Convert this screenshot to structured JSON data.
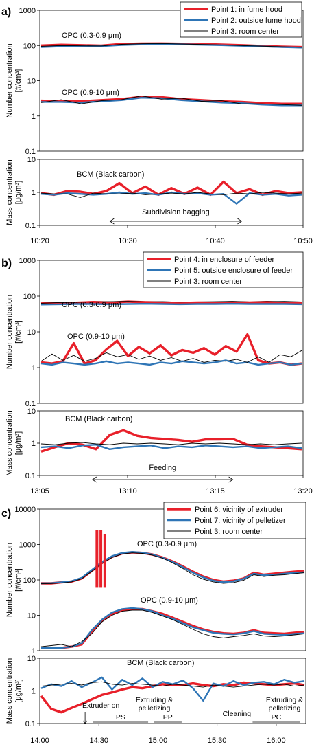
{
  "chart_data": [
    {
      "type": "line",
      "panel_label": "a)",
      "xlabel": "",
      "x_ticks": [
        "10:20",
        "10:30",
        "10:40",
        "10:50"
      ],
      "top": {
        "ylabel": [
          "Number concentration",
          "[#/cm³]"
        ],
        "yscale": "log",
        "ylim": [
          0.1,
          1000
        ],
        "y_ticks": [
          "0.1",
          "1",
          "10",
          "100",
          "1000"
        ],
        "annotations": [
          "OPC (0.3-0.9 μm)",
          "OPC (0.9-10 μm)"
        ]
      },
      "bottom": {
        "ylabel": [
          "Mass concentration",
          "[μg/m³]"
        ],
        "yscale": "log",
        "ylim": [
          0.1,
          10
        ],
        "y_ticks": [
          "0.1",
          "1",
          "10"
        ],
        "annotations": [
          "BCM (Black carbon)",
          "Subdivision bagging"
        ]
      },
      "legend": {
        "position": "top-right",
        "entries": [
          "Point 1: in fume hood",
          "Point 2: outside fume hood",
          "Point 3: room center"
        ]
      },
      "series": [
        {
          "name": "Point 1: in fume hood",
          "color": "#e8202a",
          "opc_03_09": [
            100,
            105,
            102,
            99,
            110,
            113,
            114,
            112,
            110,
            106,
            102,
            97,
            93,
            90
          ],
          "opc_09_10": [
            2.7,
            2.6,
            2.6,
            2.8,
            3.0,
            3.5,
            3.4,
            3.0,
            2.8,
            2.6,
            2.5,
            2.3,
            2.2,
            2.2
          ],
          "bcm": [
            0.95,
            0.85,
            1.1,
            1.05,
            0.9,
            1.1,
            1.9,
            0.95,
            1.5,
            0.85,
            1.35,
            0.9,
            1.4,
            0.85,
            2.1,
            0.95,
            1.25,
            0.85,
            1.1,
            0.95,
            1.0
          ]
        },
        {
          "name": "Point 2: outside fume hood",
          "color": "#2e75b6",
          "opc_03_09": [
            90,
            94,
            95,
            96,
            103,
            107,
            110,
            108,
            105,
            102,
            98,
            94,
            90,
            87
          ],
          "opc_09_10": [
            2.5,
            2.5,
            2.4,
            2.6,
            2.8,
            3.3,
            3.2,
            2.8,
            2.6,
            2.4,
            2.3,
            2.1,
            2.0,
            2.0
          ],
          "bcm": [
            0.9,
            0.85,
            0.95,
            0.9,
            0.85,
            0.9,
            1.0,
            0.9,
            0.95,
            0.85,
            1.0,
            0.9,
            0.95,
            0.85,
            0.9,
            0.45,
            0.95,
            0.85,
            0.9,
            0.8,
            0.85
          ]
        },
        {
          "name": "Point 3: room center",
          "color": "#000000",
          "opc_03_09": [
            95,
            100,
            98,
            97,
            108,
            112,
            114,
            110,
            107,
            104,
            100,
            96,
            92,
            89
          ],
          "opc_09_10": [
            2.4,
            2.9,
            2.2,
            2.7,
            2.9,
            3.7,
            3.0,
            3.2,
            2.6,
            2.7,
            2.2,
            2.2,
            2.1,
            2.0
          ],
          "bcm": [
            0.95,
            0.9,
            0.9,
            0.7,
            0.95,
            0.9,
            0.9,
            0.95,
            0.85,
            0.9,
            0.95,
            0.9,
            1.0,
            0.9,
            0.85,
            0.95,
            0.9,
            1.0,
            0.95,
            0.9,
            0.95
          ]
        }
      ],
      "bracket": {
        "label": "Subdivision bagging",
        "start": "10:28",
        "end": "10:43"
      }
    },
    {
      "type": "line",
      "panel_label": "b)",
      "xlabel": "",
      "x_ticks": [
        "13:05",
        "13:10",
        "13:15",
        "13:20"
      ],
      "top": {
        "ylabel": [
          "Number concentration",
          "[#/cm³]"
        ],
        "yscale": "log",
        "ylim": [
          0.1,
          1000
        ],
        "y_ticks": [
          "0.1",
          "1",
          "10",
          "100",
          "1000"
        ],
        "annotations": [
          "OPC (0.3-0.9 μm)",
          "OPC (0.9-10 μm)"
        ]
      },
      "bottom": {
        "ylabel": [
          "Mass concentration",
          "[μg/m³]"
        ],
        "yscale": "log",
        "ylim": [
          0.1,
          10
        ],
        "y_ticks": [
          "0.1",
          "1",
          "10"
        ],
        "annotations": [
          "BCM (Black carbon)",
          "Feeding"
        ]
      },
      "legend": {
        "position": "top-right",
        "entries": [
          "Point 4: in enclosure of feeder",
          "Point 5: outside enclosure of feeder",
          "Point 3: room center"
        ]
      },
      "series": [
        {
          "name": "Point 4: in enclosure of feeder",
          "color": "#e8202a",
          "opc_03_09": [
            62,
            64,
            65,
            68,
            66,
            70,
            67,
            66,
            64,
            66,
            65,
            67,
            66,
            68,
            66,
            65
          ],
          "opc_09_10": [
            1.4,
            1.3,
            1.5,
            4.8,
            1.3,
            1.6,
            3.2,
            5.6,
            2.1,
            3.8,
            2.5,
            4.2,
            2.2,
            3.1,
            2.6,
            3.5,
            2.3,
            4.0,
            2.8,
            8.5,
            1.6,
            1.3,
            1.4,
            1.2,
            1.3
          ],
          "bcm": [
            0.55,
            0.75,
            1.0,
            0.9,
            0.65,
            1.8,
            2.5,
            1.7,
            1.45,
            1.35,
            1.25,
            1.1,
            1.3,
            1.3,
            1.35,
            0.9,
            0.8,
            0.75,
            0.7,
            0.65
          ]
        },
        {
          "name": "Point 5: outside enclosure of feeder",
          "color": "#2e75b6",
          "opc_03_09": [
            58,
            59,
            60,
            60,
            59,
            60,
            61,
            60,
            59,
            60,
            60,
            61,
            60,
            60,
            60,
            59
          ],
          "opc_09_10": [
            1.3,
            1.2,
            1.4,
            1.3,
            1.2,
            1.3,
            1.5,
            1.3,
            1.4,
            1.3,
            1.2,
            1.4,
            1.3,
            1.5,
            1.4,
            1.3,
            1.4,
            1.6,
            1.3,
            1.4,
            1.2,
            1.3,
            1.4,
            1.2,
            1.3
          ],
          "bcm": [
            0.75,
            0.8,
            0.7,
            0.85,
            0.9,
            0.65,
            0.75,
            0.8,
            0.85,
            0.7,
            0.8,
            0.75,
            0.85,
            0.8,
            0.75,
            0.8,
            0.7,
            0.75,
            0.8,
            0.7
          ]
        },
        {
          "name": "Point 3: room center",
          "color": "#000000",
          "opc_03_09": [
            63,
            66,
            67,
            69,
            70,
            71,
            69,
            70,
            68,
            69,
            70,
            71,
            69,
            70,
            71,
            69
          ],
          "opc_09_10": [
            1.5,
            2.4,
            1.6,
            2.2,
            1.5,
            1.8,
            2.6,
            2.0,
            2.3,
            1.7,
            2.1,
            1.6,
            1.9,
            1.5,
            1.8,
            1.4,
            1.6,
            1.5,
            1.7,
            1.4,
            2.0,
            1.4,
            2.3,
            2.0,
            3.0
          ],
          "bcm": [
            0.95,
            0.9,
            1.0,
            1.05,
            0.95,
            0.9,
            1.0,
            0.95,
            1.0,
            0.95,
            0.9,
            1.0,
            0.95,
            1.0,
            0.95,
            0.9,
            0.95,
            0.9,
            0.95,
            1.0
          ]
        }
      ],
      "bracket": {
        "label": "Feeding",
        "start": "13:08",
        "end": "13:16"
      }
    },
    {
      "type": "line",
      "panel_label": "c)",
      "xlabel": "",
      "x_ticks": [
        "14:00",
        "14:30",
        "15:00",
        "15:30",
        "16:00"
      ],
      "top": {
        "ylabel": [
          "Number concentration",
          "[#/cm³]"
        ],
        "yscale": "log",
        "ylim": [
          1,
          10000
        ],
        "y_ticks": [
          "1",
          "10",
          "100",
          "1000",
          "10000"
        ],
        "annotations": [
          "OPC (0.3-0.9 μm)",
          "OPC (0.9-10 μm)"
        ]
      },
      "bottom": {
        "ylabel": [
          "Mass concentration",
          "[μg/m³]"
        ],
        "yscale": "log",
        "ylim": [
          0.1,
          10
        ],
        "y_ticks": [
          "0.1",
          "1",
          "10"
        ],
        "annotations": [
          "BCM (Black carbon)",
          "Extruder on",
          "Extruding & pelletizing",
          "PS",
          "PP",
          "Cleaning",
          "Extruding & pelletizing",
          "PC"
        ]
      },
      "legend": {
        "position": "top-right",
        "entries": [
          "Point 6: vicinity of extruder",
          "Point 7: vicinity of pelletizer",
          "Point 3: room center"
        ]
      },
      "series": [
        {
          "name": "Point 6: vicinity of extruder",
          "color": "#e8202a",
          "opc_03_09": [
            80,
            80,
            85,
            90,
            110,
            180,
            300,
            450,
            560,
            600,
            580,
            520,
            430,
            330,
            240,
            170,
            125,
            100,
            90,
            95,
            110,
            160,
            140,
            150,
            160,
            170,
            180
          ],
          "opc_09_10": [
            1.2,
            1.2,
            1.2,
            1.3,
            1.5,
            3.5,
            7,
            11,
            14,
            15,
            15,
            13,
            11,
            8.5,
            6.5,
            5,
            4,
            3.4,
            3.1,
            3.0,
            3.2,
            3.8,
            3.2,
            3.1,
            3.0,
            3.2,
            3.4
          ],
          "bcm": [
            0.7,
            0.28,
            0.22,
            0.3,
            0.4,
            0.55,
            0.75,
            0.9,
            1.1,
            1.3,
            1.2,
            1.4,
            1.6,
            1.5,
            1.5,
            1.7,
            1.5,
            1.4,
            1.6,
            1.5,
            1.8,
            1.7,
            1.6,
            1.5,
            1.6,
            1.7,
            1.5
          ]
        },
        {
          "name": "Point 7: vicinity of pelletizer",
          "color": "#2e75b6",
          "opc_03_09": [
            80,
            81,
            86,
            92,
            115,
            190,
            320,
            470,
            580,
            620,
            590,
            520,
            420,
            320,
            230,
            160,
            118,
            95,
            86,
            92,
            108,
            150,
            135,
            140,
            150,
            158,
            165
          ],
          "opc_09_10": [
            1.2,
            1.2,
            1.2,
            1.3,
            1.6,
            3.8,
            7.5,
            12,
            15,
            16,
            15,
            13,
            10,
            8,
            6,
            4.6,
            3.8,
            3.2,
            3.0,
            2.9,
            3.1,
            3.6,
            3.0,
            2.9,
            2.8,
            3.0,
            3.1
          ],
          "bcm": [
            1.2,
            1.6,
            1.4,
            2.0,
            1.3,
            1.8,
            2.6,
            1.1,
            2.2,
            1.5,
            2.4,
            1.3,
            1.9,
            1.6,
            2.1,
            1.2,
            0.5,
            1.7,
            1.4,
            2.0,
            1.5,
            1.8,
            1.9,
            1.6,
            2.2,
            1.8,
            2.0
          ]
        },
        {
          "name": "Point 3: room center",
          "color": "#000000",
          "opc_03_09": [
            78,
            79,
            82,
            88,
            108,
            175,
            290,
            430,
            540,
            580,
            560,
            500,
            410,
            300,
            210,
            140,
            105,
            88,
            80,
            84,
            98,
            140,
            125,
            135,
            140,
            150,
            160
          ],
          "opc_09_10": [
            1.3,
            1.4,
            1.5,
            1.3,
            1.8,
            3.0,
            6.5,
            10,
            13,
            14,
            14,
            12,
            9.5,
            7.5,
            5.5,
            4.0,
            3.0,
            2.5,
            2.3,
            2.5,
            2.7,
            3.0,
            2.6,
            2.5,
            2.6,
            2.8,
            3.0
          ],
          "bcm": [
            1.4,
            1.5,
            1.6,
            1.7,
            1.5,
            1.8,
            1.9,
            1.6,
            1.5,
            1.7,
            1.6,
            1.5,
            1.4,
            1.6,
            1.5,
            1.4,
            1.3,
            1.5,
            1.4,
            1.3,
            1.4,
            1.5,
            1.6,
            1.5,
            1.6,
            1.4,
            1.5
          ]
        }
      ],
      "spikes": [
        {
          "time": "14:29",
          "peak": 2500
        },
        {
          "time": "14:31",
          "peak": 2500
        },
        {
          "time": "14:33",
          "peak": 2000
        }
      ]
    }
  ]
}
